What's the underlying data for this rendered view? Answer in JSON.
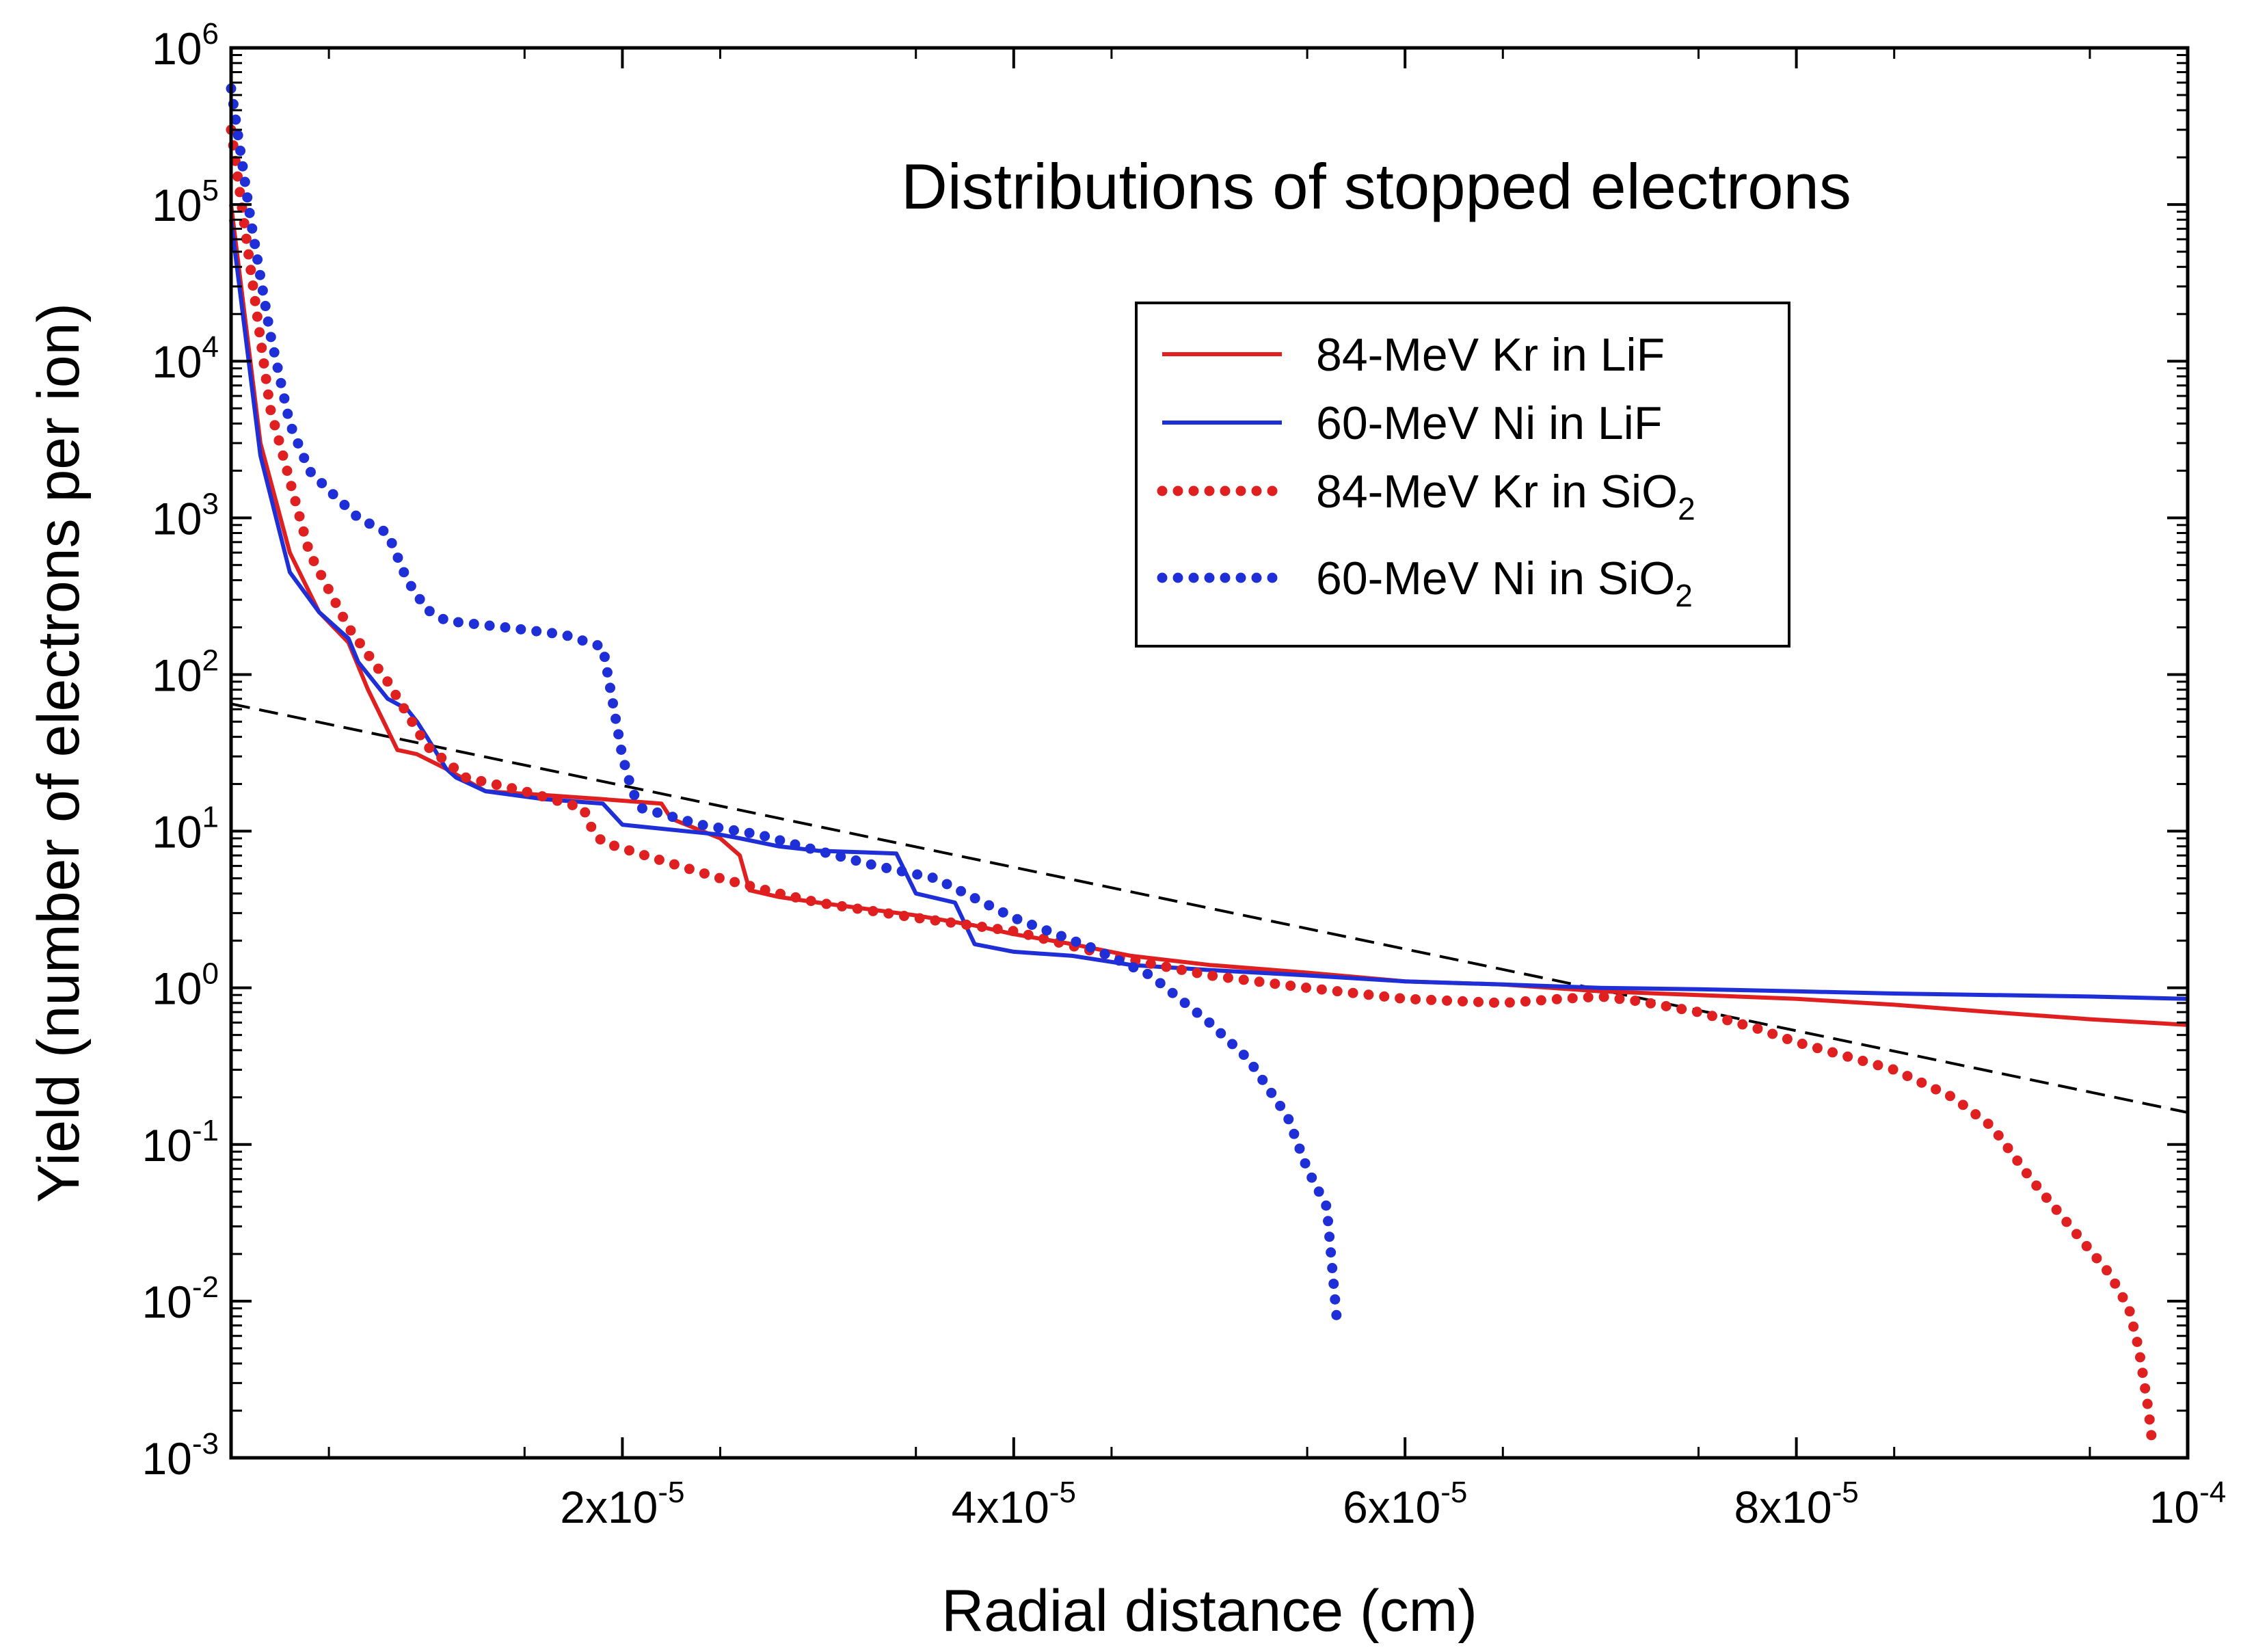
{
  "chart_data": {
    "type": "line",
    "title": "Distributions of stopped electrons",
    "xlabel": "Radial distance (cm)",
    "ylabel": "Yield (number of electrons per ion)",
    "xlim": [
      0,
      0.0001
    ],
    "ylim": [
      0.001,
      1000000
    ],
    "y_scale": "log",
    "grid": false,
    "legend_position": "top-right",
    "x_ticks": [
      {
        "value": 2e-05,
        "mantissa": "2x10",
        "exp": "-5"
      },
      {
        "value": 4e-05,
        "mantissa": "4x10",
        "exp": "-5"
      },
      {
        "value": 6e-05,
        "mantissa": "6x10",
        "exp": "-5"
      },
      {
        "value": 8e-05,
        "mantissa": "8x10",
        "exp": "-5"
      },
      {
        "value": 0.0001,
        "mantissa": "10",
        "exp": "-4"
      }
    ],
    "y_ticks": [
      {
        "value": 1000000,
        "mantissa": "10",
        "exp": "6"
      },
      {
        "value": 100000,
        "mantissa": "10",
        "exp": "5"
      },
      {
        "value": 10000,
        "mantissa": "10",
        "exp": "4"
      },
      {
        "value": 1000,
        "mantissa": "10",
        "exp": "3"
      },
      {
        "value": 100,
        "mantissa": "10",
        "exp": "2"
      },
      {
        "value": 10,
        "mantissa": "10",
        "exp": "1"
      },
      {
        "value": 1,
        "mantissa": "10",
        "exp": "0"
      },
      {
        "value": 0.1,
        "mantissa": "10",
        "exp": "-1"
      },
      {
        "value": 0.01,
        "mantissa": "10",
        "exp": "-2"
      },
      {
        "value": 0.001,
        "mantissa": "10",
        "exp": "-3"
      }
    ],
    "series": [
      {
        "name": "84-MeV Kr in LiF",
        "label_main": "84-MeV Kr in LiF",
        "label_sub": "",
        "label_tail": "",
        "color": "#e02020",
        "style": "solid",
        "x": [
          0,
          1.5e-06,
          3e-06,
          4.5e-06,
          6e-06,
          7e-06,
          7.8e-06,
          8.5e-06,
          9e-06,
          9.5e-06,
          1.1e-05,
          1.3e-05,
          1.6e-05,
          1.9e-05,
          2.2e-05,
          2.25e-05,
          2.5e-05,
          2.6e-05,
          2.65e-05,
          2.8e-05,
          3e-05,
          3.5e-05,
          3.8e-05,
          4e-05,
          4.3e-05,
          4.6e-05,
          5e-05,
          5.5e-05,
          6e-05,
          6.5e-05,
          7e-05,
          7.5e-05,
          8e-05,
          8.5e-05,
          9e-05,
          9.5e-05,
          0.0001
        ],
        "y": [
          100000,
          3000,
          600,
          250,
          160,
          80,
          50,
          33,
          32,
          31,
          25,
          18,
          17,
          16,
          15,
          12,
          9,
          7,
          4.2,
          3.8,
          3.5,
          2.9,
          2.5,
          2.2,
          1.9,
          1.6,
          1.4,
          1.25,
          1.1,
          1.05,
          0.95,
          0.9,
          0.85,
          0.78,
          0.7,
          0.63,
          0.58
        ]
      },
      {
        "name": "60-MeV Ni in LiF",
        "label_main": "60-MeV Ni in LiF",
        "label_sub": "",
        "label_tail": "",
        "color": "#1f2fd8",
        "style": "solid",
        "x": [
          0,
          1.5e-06,
          3e-06,
          4.5e-06,
          6e-06,
          6.5e-06,
          8e-06,
          9e-06,
          9.5e-06,
          1e-05,
          1.1e-05,
          1.15e-05,
          1.3e-05,
          1.6e-05,
          1.9e-05,
          2e-05,
          2.5e-05,
          2.6e-05,
          2.8e-05,
          3e-05,
          3.4e-05,
          3.5e-05,
          3.7e-05,
          3.8e-05,
          4e-05,
          4.3e-05,
          4.6e-05,
          5e-05,
          5.5e-05,
          6e-05,
          6.5e-05,
          7e-05,
          7.5e-05,
          8e-05,
          8.5e-05,
          9e-05,
          9.5e-05,
          0.0001
        ],
        "y": [
          80000,
          2500,
          450,
          250,
          170,
          120,
          70,
          60,
          50,
          40,
          25,
          22,
          18,
          16,
          15,
          11,
          9.5,
          9,
          8,
          7.5,
          7.2,
          4.0,
          3.5,
          1.9,
          1.7,
          1.6,
          1.4,
          1.3,
          1.2,
          1.1,
          1.05,
          1.0,
          0.98,
          0.95,
          0.92,
          0.9,
          0.88,
          0.85
        ]
      },
      {
        "name": "84-MeV Kr in SiO2",
        "label_main": "84-MeV Kr in SiO",
        "label_sub": "2",
        "label_tail": "",
        "color": "#e02020",
        "style": "dotted",
        "x": [
          0,
          2e-06,
          4e-06,
          6e-06,
          8e-06,
          1e-05,
          1.2e-05,
          1.5e-05,
          1.8e-05,
          1.85e-05,
          1.9e-05,
          2.2e-05,
          2.5e-05,
          2.8e-05,
          3e-05,
          3.5e-05,
          4e-05,
          4.5e-05,
          5e-05,
          5.5e-05,
          6e-05,
          6.5e-05,
          6.8e-05,
          7e-05,
          7.2e-05,
          7.5e-05,
          7.8e-05,
          8e-05,
          8.5e-05,
          8.8e-05,
          9e-05,
          9.2e-05,
          9.4e-05,
          9.6e-05,
          9.7e-05,
          9.75e-05,
          9.8e-05,
          9.82e-05
        ],
        "y": [
          300000,
          5000,
          600,
          200,
          90,
          35,
          22,
          18,
          14,
          10,
          8.5,
          6.5,
          5.0,
          4.0,
          3.5,
          2.8,
          2.3,
          1.6,
          1.2,
          1.0,
          0.85,
          0.8,
          0.85,
          0.88,
          0.82,
          0.7,
          0.55,
          0.45,
          0.3,
          0.2,
          0.13,
          0.06,
          0.03,
          0.015,
          0.009,
          0.005,
          0.002,
          0.0012
        ]
      },
      {
        "name": "60-MeV Ni in SiO2",
        "label_main": "60-MeV Ni in SiO",
        "label_sub": "2",
        "label_tail": "",
        "color": "#1f2fd8",
        "style": "dotted",
        "x": [
          0,
          1e-06,
          2e-06,
          3e-06,
          4e-06,
          5e-06,
          6.5e-06,
          8e-06,
          9e-06,
          1e-05,
          1.1e-05,
          1.4e-05,
          1.7e-05,
          1.9e-05,
          2e-05,
          2.05e-05,
          2.1e-05,
          2.4e-05,
          2.7e-05,
          3e-05,
          3.3e-05,
          3.6e-05,
          4e-05,
          4.4e-05,
          4.7e-05,
          5e-05,
          5.2e-05,
          5.4e-05,
          5.5e-05,
          5.6e-05,
          5.65e-05
        ],
        "y": [
          550000,
          80000,
          15000,
          4000,
          2000,
          1500,
          1000,
          800,
          400,
          260,
          220,
          200,
          180,
          150,
          30,
          18,
          14,
          11,
          9.5,
          7.5,
          6.0,
          5.0,
          2.8,
          1.8,
          1.2,
          0.6,
          0.35,
          0.15,
          0.07,
          0.04,
          0.008
        ]
      }
    ],
    "reference_line": {
      "name": "dashed reference",
      "style": "dashed",
      "color": "#000000",
      "x": [
        0,
        0.0001
      ],
      "y": [
        65,
        0.16
      ]
    }
  }
}
